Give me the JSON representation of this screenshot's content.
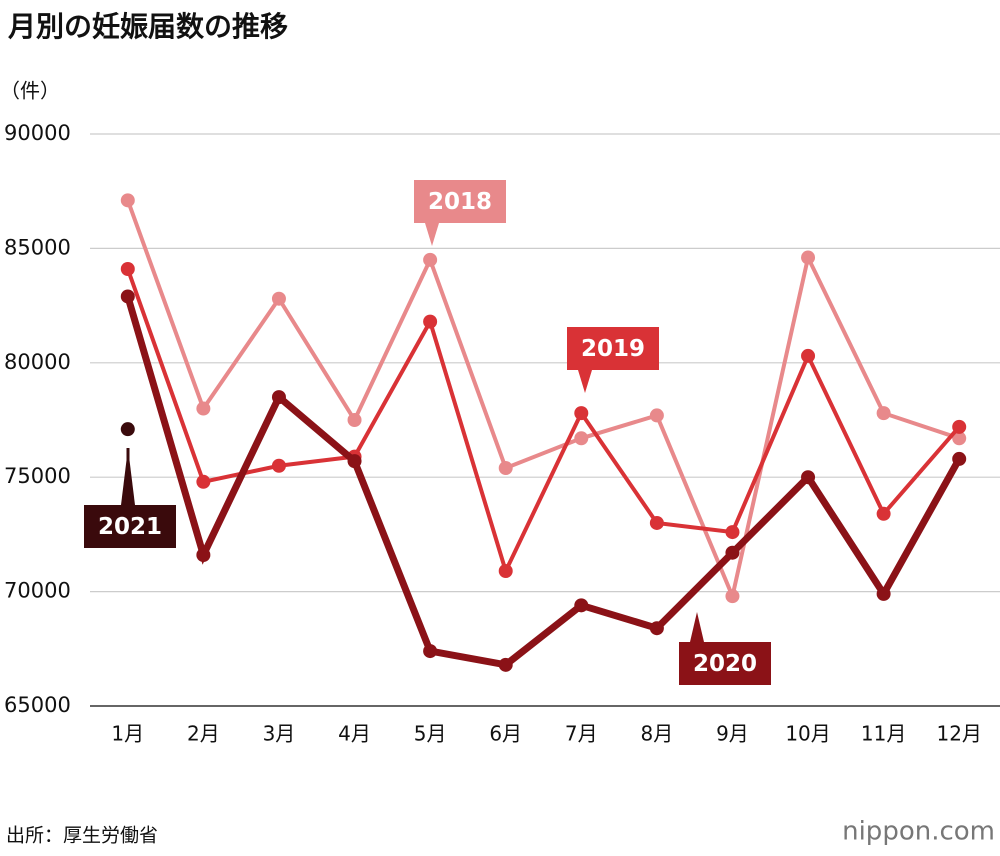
{
  "chart_data": {
    "type": "line",
    "title": "月別の妊娠届数の推移",
    "y_label": "（件）",
    "source": "出所：厚生労働省",
    "logo": "nippon.com",
    "categories": [
      "1月",
      "2月",
      "3月",
      "4月",
      "5月",
      "6月",
      "7月",
      "8月",
      "9月",
      "10月",
      "11月",
      "12月"
    ],
    "ylim": [
      65000,
      90000
    ],
    "yticks": [
      65000,
      70000,
      75000,
      80000,
      85000,
      90000
    ],
    "grid": true,
    "series": [
      {
        "name": "2018",
        "color": "#e8898b",
        "values": [
          87100,
          78000,
          82800,
          77500,
          84500,
          75400,
          76700,
          77700,
          69800,
          84600,
          77800,
          76700
        ]
      },
      {
        "name": "2019",
        "color": "#d93236",
        "values": [
          84100,
          74800,
          75500,
          75900,
          81800,
          70900,
          77800,
          73000,
          72600,
          80300,
          73400,
          77200
        ]
      },
      {
        "name": "2020",
        "color": "#8b1217",
        "values": [
          82900,
          71600,
          78500,
          75700,
          67400,
          66800,
          69400,
          68400,
          71700,
          75000,
          69900,
          75800
        ]
      },
      {
        "name": "2021",
        "color": "#3a0a0c",
        "values": [
          77100,
          null,
          null,
          null,
          null,
          null,
          null,
          null,
          null,
          null,
          null,
          null
        ]
      }
    ]
  }
}
